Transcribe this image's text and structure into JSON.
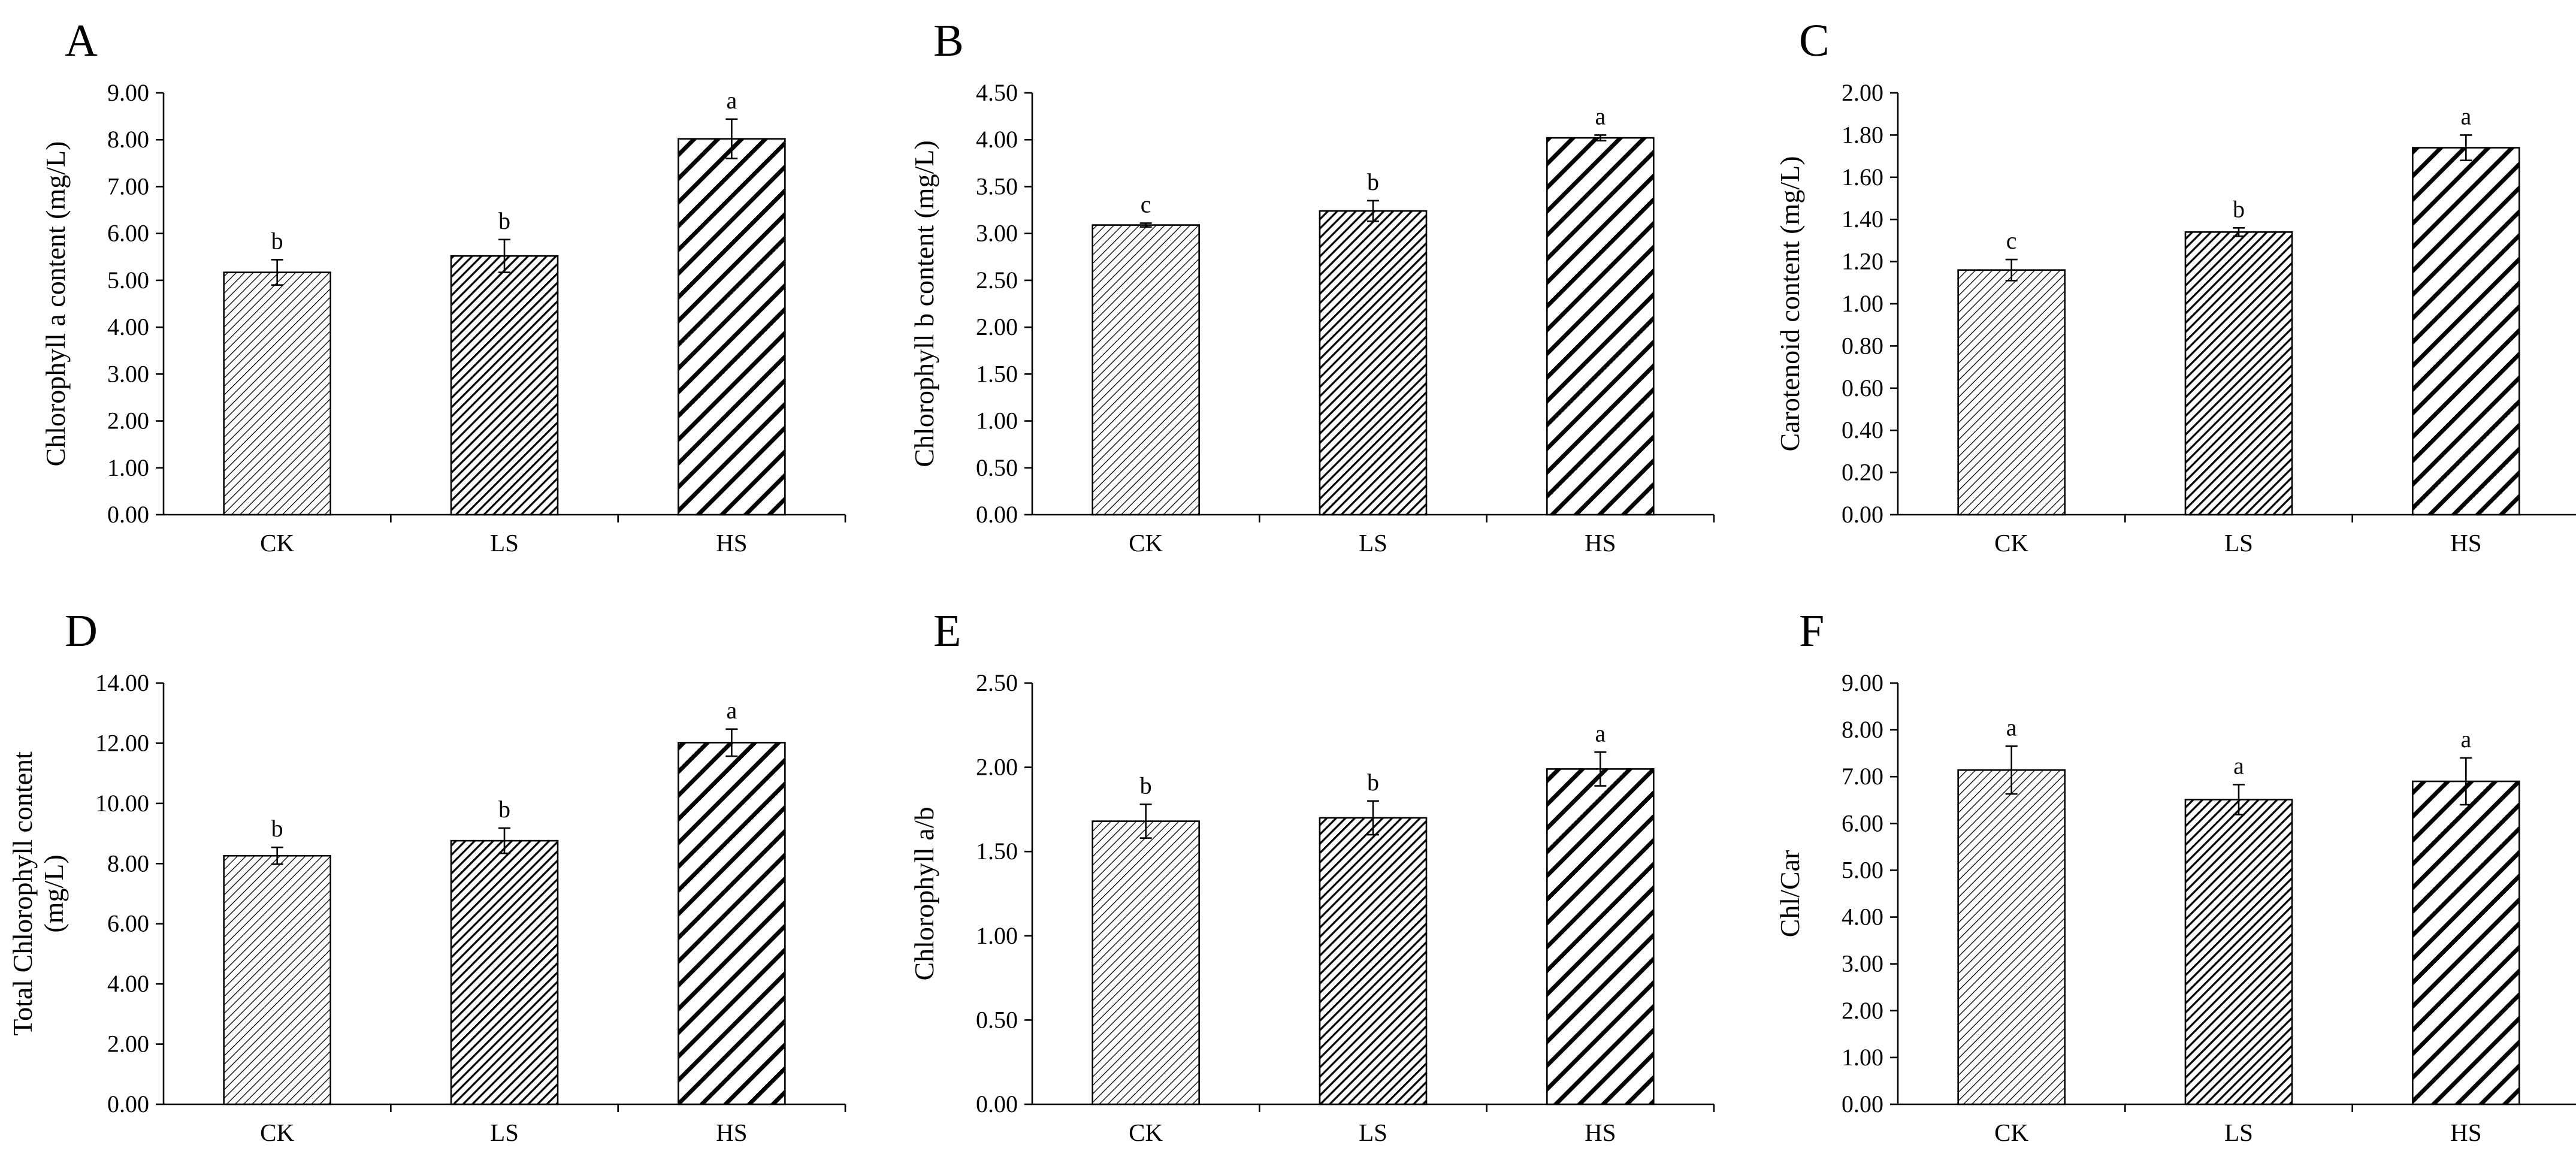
{
  "figure": {
    "layout": "3x2 grid of bar charts"
  },
  "chart_data": [
    {
      "panel": "A",
      "type": "bar",
      "title": "",
      "xlabel": "",
      "ylabel": [
        "Chlorophyll a content (mg/L)"
      ],
      "ylim": [
        0,
        9
      ],
      "ytick_step": 1,
      "yticks": [
        "0.00",
        "1.00",
        "2.00",
        "3.00",
        "4.00",
        "5.00",
        "6.00",
        "7.00",
        "8.00",
        "9.00"
      ],
      "categories": [
        "CK",
        "LS",
        "HS"
      ],
      "values": [
        5.17,
        5.52,
        8.02
      ],
      "errors": [
        0.27,
        0.35,
        0.42
      ],
      "labels": [
        "b",
        "b",
        "a"
      ]
    },
    {
      "panel": "B",
      "type": "bar",
      "title": "",
      "xlabel": "",
      "ylabel": [
        "Chlorophyll b content (mg/L)"
      ],
      "ylim": [
        0,
        4.5
      ],
      "ytick_step": 0.5,
      "yticks": [
        "0.00",
        "0.50",
        "1.00",
        "1.50",
        "2.00",
        "2.50",
        "3.00",
        "3.50",
        "4.00",
        "4.50"
      ],
      "categories": [
        "CK",
        "LS",
        "HS"
      ],
      "values": [
        3.09,
        3.24,
        4.02
      ],
      "errors": [
        0.02,
        0.11,
        0.03
      ],
      "labels": [
        "c",
        "b",
        "a"
      ]
    },
    {
      "panel": "C",
      "type": "bar",
      "title": "",
      "xlabel": "",
      "ylabel": [
        "Carotenoid content (mg/L)"
      ],
      "ylim": [
        0,
        2
      ],
      "ytick_step": 0.2,
      "yticks": [
        "0.00",
        "0.20",
        "0.40",
        "0.60",
        "0.80",
        "1.00",
        "1.20",
        "1.40",
        "1.60",
        "1.80",
        "2.00"
      ],
      "categories": [
        "CK",
        "LS",
        "HS"
      ],
      "values": [
        1.16,
        1.34,
        1.74
      ],
      "errors": [
        0.05,
        0.02,
        0.06
      ],
      "labels": [
        "c",
        "b",
        "a"
      ]
    },
    {
      "panel": "D",
      "type": "bar",
      "title": "",
      "xlabel": "",
      "ylabel": [
        "Total Chlorophyll content",
        "(mg/L)"
      ],
      "ylim": [
        0,
        14
      ],
      "ytick_step": 2,
      "yticks": [
        "0.00",
        "2.00",
        "4.00",
        "6.00",
        "8.00",
        "10.00",
        "12.00",
        "14.00"
      ],
      "categories": [
        "CK",
        "LS",
        "HS"
      ],
      "values": [
        8.26,
        8.76,
        12.02
      ],
      "errors": [
        0.28,
        0.42,
        0.45
      ],
      "labels": [
        "b",
        "b",
        "a"
      ]
    },
    {
      "panel": "E",
      "type": "bar",
      "title": "",
      "xlabel": "",
      "ylabel": [
        "Chlorophyll a/b"
      ],
      "ylim": [
        0,
        2.5
      ],
      "ytick_step": 0.5,
      "yticks": [
        "0.00",
        "0.50",
        "1.00",
        "1.50",
        "2.00",
        "2.50"
      ],
      "categories": [
        "CK",
        "LS",
        "HS"
      ],
      "values": [
        1.68,
        1.7,
        1.99
      ],
      "errors": [
        0.1,
        0.1,
        0.1
      ],
      "labels": [
        "b",
        "b",
        "a"
      ]
    },
    {
      "panel": "F",
      "type": "bar",
      "title": "",
      "xlabel": "",
      "ylabel": [
        "Chl/Car"
      ],
      "ylim": [
        0,
        9
      ],
      "ytick_step": 1,
      "yticks": [
        "0.00",
        "1.00",
        "2.00",
        "3.00",
        "4.00",
        "5.00",
        "6.00",
        "7.00",
        "8.00",
        "9.00"
      ],
      "categories": [
        "CK",
        "LS",
        "HS"
      ],
      "values": [
        7.14,
        6.51,
        6.9
      ],
      "errors": [
        0.51,
        0.32,
        0.5
      ],
      "labels": [
        "a",
        "a",
        "a"
      ]
    }
  ]
}
